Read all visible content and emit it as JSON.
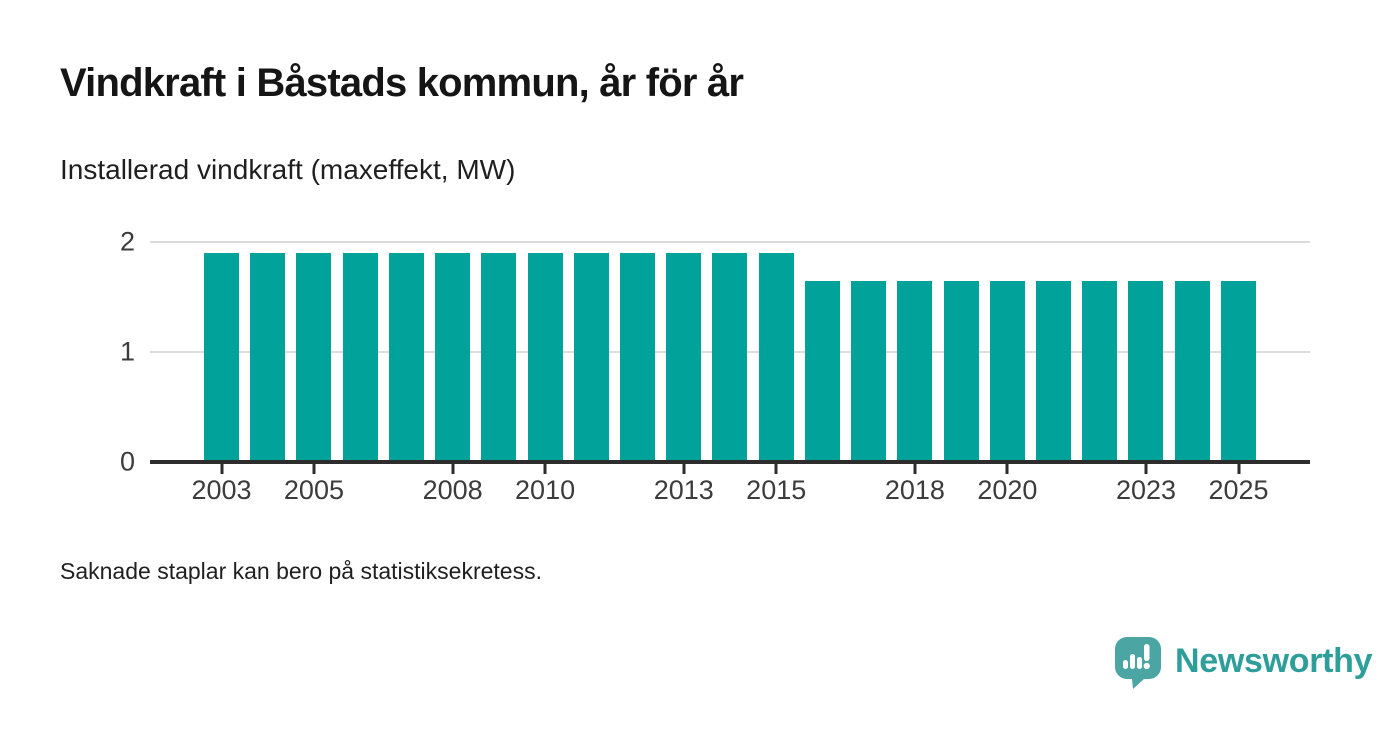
{
  "header": {
    "title": "Vindkraft i Båstads kommun, år för år",
    "subtitle": "Installerad vindkraft (maxeffekt, MW)"
  },
  "footnote": {
    "text": "Saknade staplar kan bero på statistiksekretess."
  },
  "branding": {
    "name": "Newsworthy",
    "icon": "newsworthy-speech-bubble-bar-chart-icon",
    "icon_color": "#4ba5a2",
    "icon_glyph_color": "#ffffff",
    "text_color": "#2e9e9a"
  },
  "colors": {
    "bar": "#00a29a",
    "gridline": "#dcdcdc",
    "axis": "#2d2d2d",
    "tick_label": "#3c3c3c",
    "title": "#151515",
    "body_text": "#1f1f1f",
    "background": "#ffffff"
  },
  "chart_data": {
    "type": "bar",
    "title": "Vindkraft i Båstads kommun, år för år",
    "subtitle": "Installerad vindkraft (maxeffekt, MW)",
    "series_name": "Installerad vindkraft (maxeffekt, MW)",
    "x": [
      2003,
      2004,
      2005,
      2006,
      2007,
      2008,
      2009,
      2010,
      2011,
      2012,
      2013,
      2014,
      2015,
      2016,
      2017,
      2018,
      2019,
      2020,
      2021,
      2022,
      2023,
      2024,
      2025
    ],
    "values": [
      1.9,
      1.9,
      1.9,
      1.9,
      1.9,
      1.9,
      1.9,
      1.9,
      1.9,
      1.9,
      1.9,
      1.9,
      1.9,
      1.65,
      1.65,
      1.65,
      1.65,
      1.65,
      1.65,
      1.65,
      1.65,
      1.65,
      1.65
    ],
    "xlabel": "",
    "ylabel": "",
    "ylim": [
      0,
      2
    ],
    "yticks": [
      0,
      1,
      2
    ],
    "xtick_labels": [
      2003,
      2005,
      2008,
      2010,
      2013,
      2015,
      2018,
      2020,
      2023,
      2025
    ],
    "grid": "horizontal-light",
    "legend": "none",
    "bar_color": "#00a29a",
    "footnote": "Saknade staplar kan bero på statistiksekretess."
  }
}
